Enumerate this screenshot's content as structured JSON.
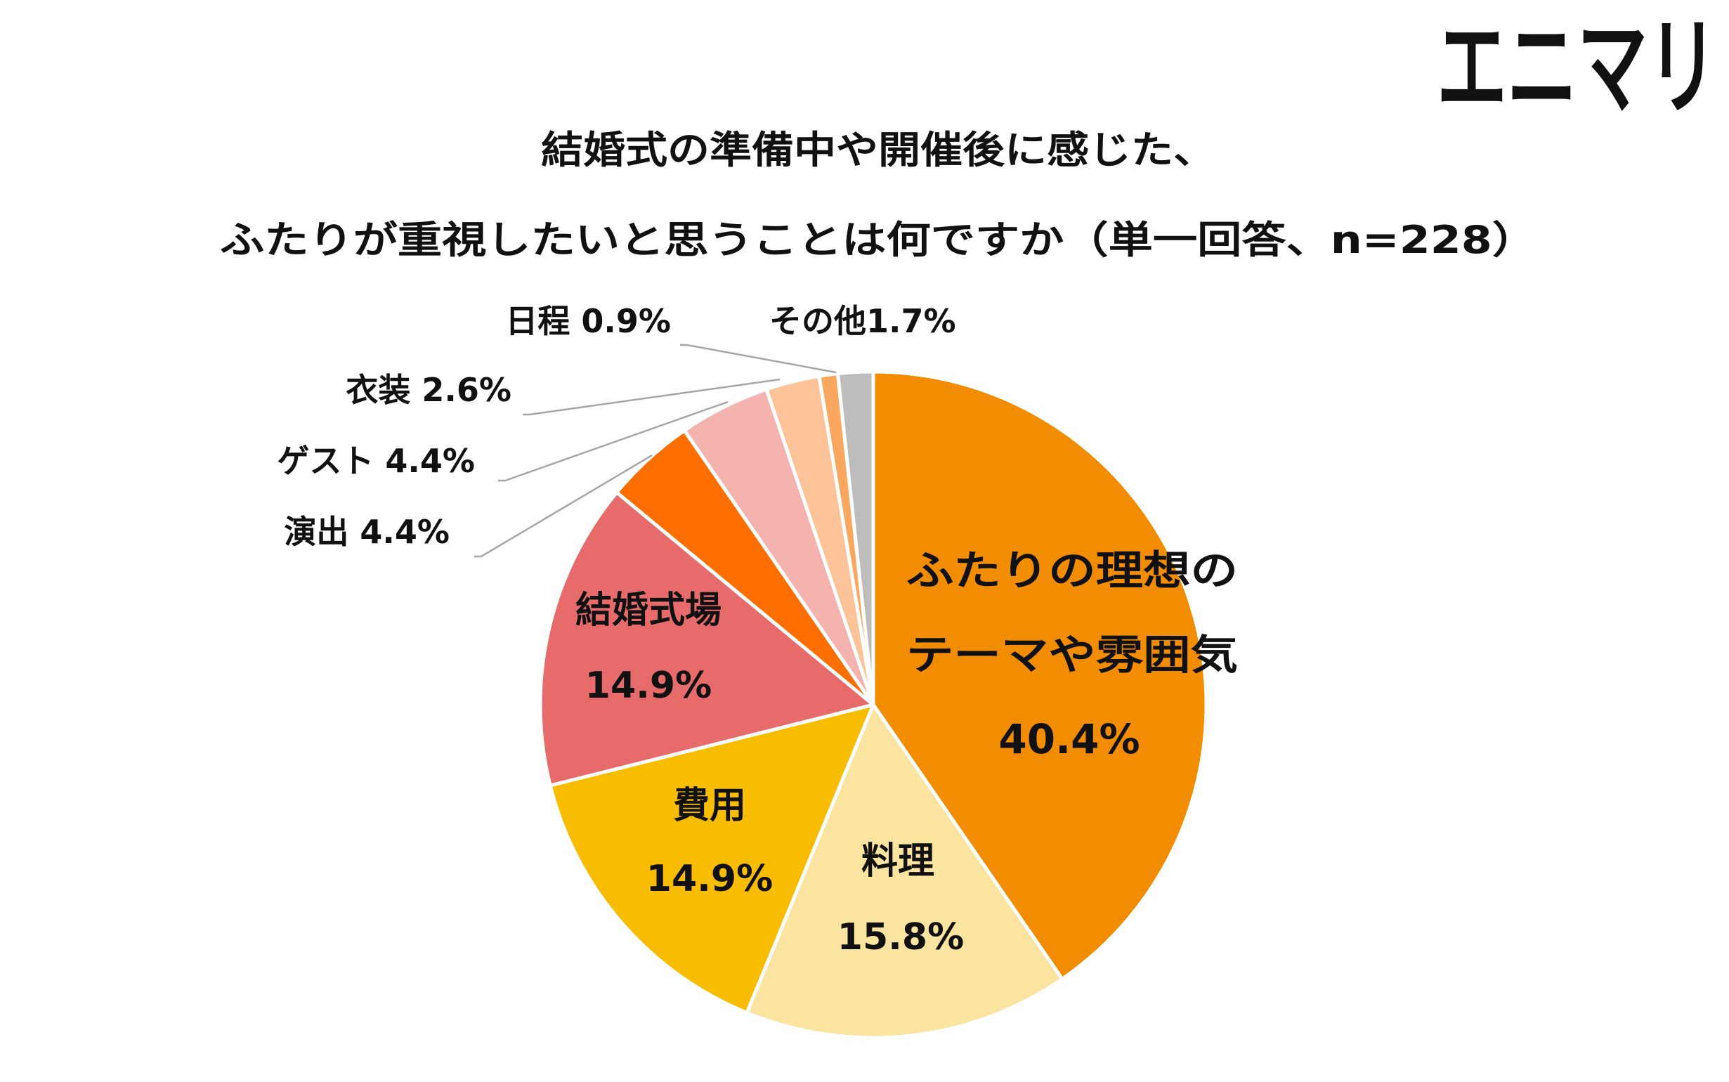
{
  "brand": {
    "logo_text": "エニマリ"
  },
  "chart_data": {
    "type": "pie",
    "title_lines": [
      "結婚式の準備中や開催後に感じた、",
      "ふたりが重視したいと思うことは何ですか（単一回答、n=228）"
    ],
    "slices": [
      {
        "label_lines": [
          "ふたりの理想の",
          "テーマや雰囲気"
        ],
        "value": 40.4,
        "value_label": "40.4%",
        "color": "#F28C00"
      },
      {
        "label_lines": [
          "料理"
        ],
        "value": 15.8,
        "value_label": "15.8%",
        "color": "#FBE3A0"
      },
      {
        "label_lines": [
          "費用"
        ],
        "value": 14.9,
        "value_label": "14.9%",
        "color": "#F8BC00"
      },
      {
        "label_lines": [
          "結婚式場"
        ],
        "value": 14.9,
        "value_label": "14.9%",
        "color": "#E86B6B"
      },
      {
        "label": "演出 4.4%",
        "value": 4.4,
        "color": "#FF6E00"
      },
      {
        "label": "ゲスト 4.4%",
        "value": 4.4,
        "color": "#F5B3B0"
      },
      {
        "label": "衣装 2.6%",
        "value": 2.6,
        "color": "#FEC399"
      },
      {
        "label": "日程 0.9%",
        "value": 0.9,
        "color": "#FAA860"
      },
      {
        "label": "その他1.7%",
        "value": 1.7,
        "color": "#BDBDBD"
      }
    ],
    "start_angle": "12 o'clock",
    "direction": "clockwise",
    "leader_line_color": "#A6A6A6"
  }
}
